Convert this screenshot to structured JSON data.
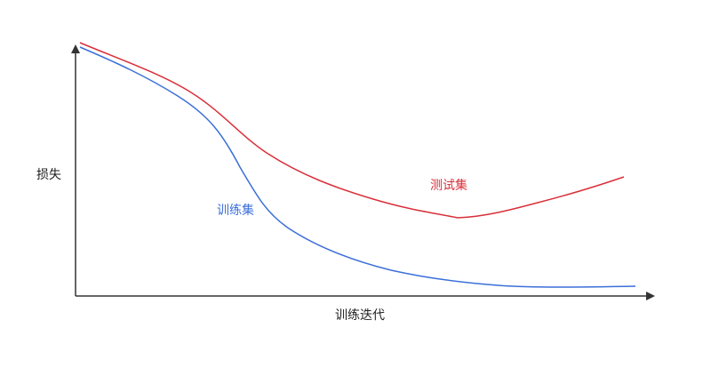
{
  "labels": {
    "y_axis": "损失",
    "x_axis": "训练迭代",
    "train": "训练集",
    "test": "测试集"
  }
}
